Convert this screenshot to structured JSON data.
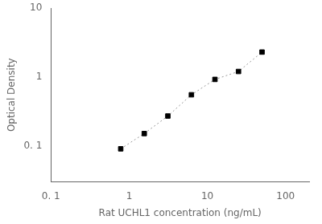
{
  "chart_data": {
    "type": "line",
    "log": true,
    "grid": false,
    "x": [
      0.78,
      1.56,
      3.125,
      6.25,
      12.5,
      25,
      50
    ],
    "series": [
      {
        "type": "line",
        "line_style": "dashed",
        "color": "#999999",
        "values": [
          0.09,
          0.15,
          0.27,
          0.55,
          0.92,
          1.2,
          2.3
        ]
      },
      {
        "type": "scatter",
        "marker": "square",
        "color": "#000000",
        "values": [
          0.09,
          0.15,
          0.27,
          0.55,
          0.92,
          1.2,
          2.3
        ]
      }
    ],
    "xlabel": "Rat UCHL1 concentration (ng/mL)",
    "ylabel": "Optical Density",
    "xlim": [
      0.1,
      200
    ],
    "ylim": [
      0.03,
      10
    ],
    "xticks": [
      {
        "value": 0.1,
        "label": "0. 1"
      },
      1,
      10,
      100
    ],
    "yticks": [
      {
        "value": 0.1,
        "label": "0. 1"
      },
      1,
      10
    ]
  }
}
